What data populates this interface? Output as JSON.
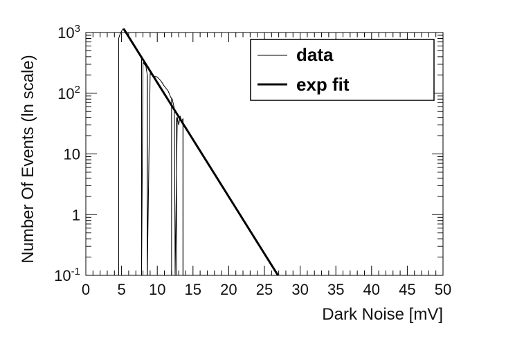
{
  "chart_data": {
    "type": "line",
    "xlabel": "Dark Noise [mV]",
    "ylabel": "Number Of Events (ln scale)",
    "xlim": [
      0,
      50
    ],
    "ylim": [
      0.1,
      1000
    ],
    "yscale": "log",
    "grid": false,
    "legend_position": "top-right",
    "x_ticks": [
      0,
      5,
      10,
      15,
      20,
      25,
      30,
      35,
      40,
      45,
      50
    ],
    "x_tick_labels": [
      "0",
      "5",
      "10",
      "15",
      "20",
      "25",
      "30",
      "35",
      "40",
      "45",
      "50"
    ],
    "y_ticks": [
      {
        "value": 1000,
        "base": "10",
        "exp": "3"
      },
      {
        "value": 100,
        "base": "10",
        "exp": "2"
      },
      {
        "value": 10,
        "base": "10",
        "exp": ""
      },
      {
        "value": 1,
        "base": "1",
        "exp": ""
      },
      {
        "value": 0.1,
        "base": "10",
        "exp": "-1"
      }
    ],
    "series": [
      {
        "name": "data",
        "style": "thin",
        "x": [
          4.6,
          4.6,
          4.8,
          5.0,
          5.2,
          5.4,
          5.5,
          7.8,
          7.8,
          8.0,
          8.4,
          8.6,
          8.6,
          9.0,
          9.5,
          10.0,
          10.5,
          11.0,
          11.5,
          11.9,
          12.1,
          12.4,
          12.5,
          12.8,
          13.0,
          13.2,
          13.4,
          13.6,
          13.6
        ],
        "y": [
          0.1,
          800,
          950,
          1050,
          1150,
          1150,
          1100,
          370,
          0.1,
          320,
          280,
          200,
          0.1,
          210,
          190,
          185,
          160,
          130,
          110,
          85,
          80,
          55,
          0.1,
          40,
          30,
          42,
          35,
          38,
          0.1
        ]
      },
      {
        "name": "exp fit",
        "style": "thick",
        "x": [
          5.3,
          26.9
        ],
        "y": [
          1150,
          0.1
        ]
      }
    ],
    "data_drops": [
      4.6,
      7.8,
      8.6,
      12.0,
      12.7,
      13.6
    ],
    "colors": {
      "data": "#000000",
      "fit": "#000000"
    }
  }
}
